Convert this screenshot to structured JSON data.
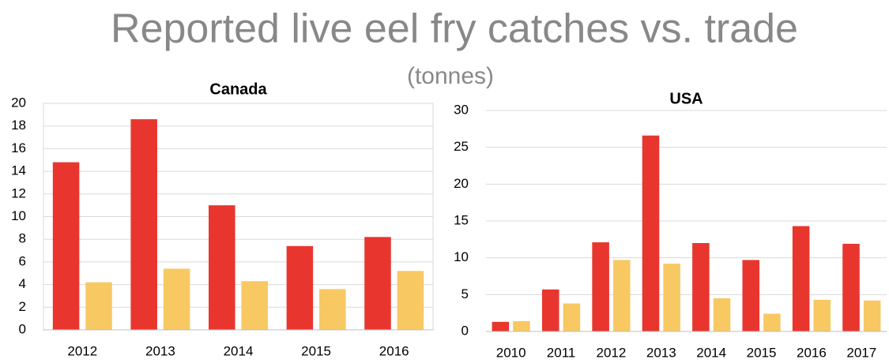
{
  "title": "Reported live eel fry catches vs. trade",
  "subtitle": "(tonnes)",
  "chart_data": [
    {
      "type": "bar",
      "title": "Canada",
      "categories": [
        "2012",
        "2013",
        "2014",
        "2015",
        "2016"
      ],
      "series": [
        {
          "color": "#e8362f",
          "values": [
            14.8,
            18.6,
            11.0,
            7.4,
            8.2
          ]
        },
        {
          "color": "#f8c862",
          "values": [
            4.2,
            5.4,
            4.3,
            3.6,
            5.2
          ]
        }
      ],
      "ylim": [
        0,
        20
      ],
      "yticks": [
        0,
        2,
        4,
        6,
        8,
        10,
        12,
        14,
        16,
        18,
        20
      ],
      "grid": true
    },
    {
      "type": "bar",
      "title": "USA",
      "categories": [
        "2010",
        "2011",
        "2012",
        "2013",
        "2014",
        "2015",
        "2016",
        "2017"
      ],
      "series": [
        {
          "color": "#e8362f",
          "values": [
            1.3,
            5.7,
            12.1,
            26.6,
            12.0,
            9.7,
            14.3,
            11.9
          ]
        },
        {
          "color": "#f8c862",
          "values": [
            1.4,
            3.8,
            9.7,
            9.2,
            4.5,
            2.4,
            4.3,
            4.2
          ]
        }
      ],
      "ylim": [
        0,
        30
      ],
      "yticks": [
        0,
        5,
        10,
        15,
        20,
        25,
        30
      ],
      "grid": true
    }
  ]
}
